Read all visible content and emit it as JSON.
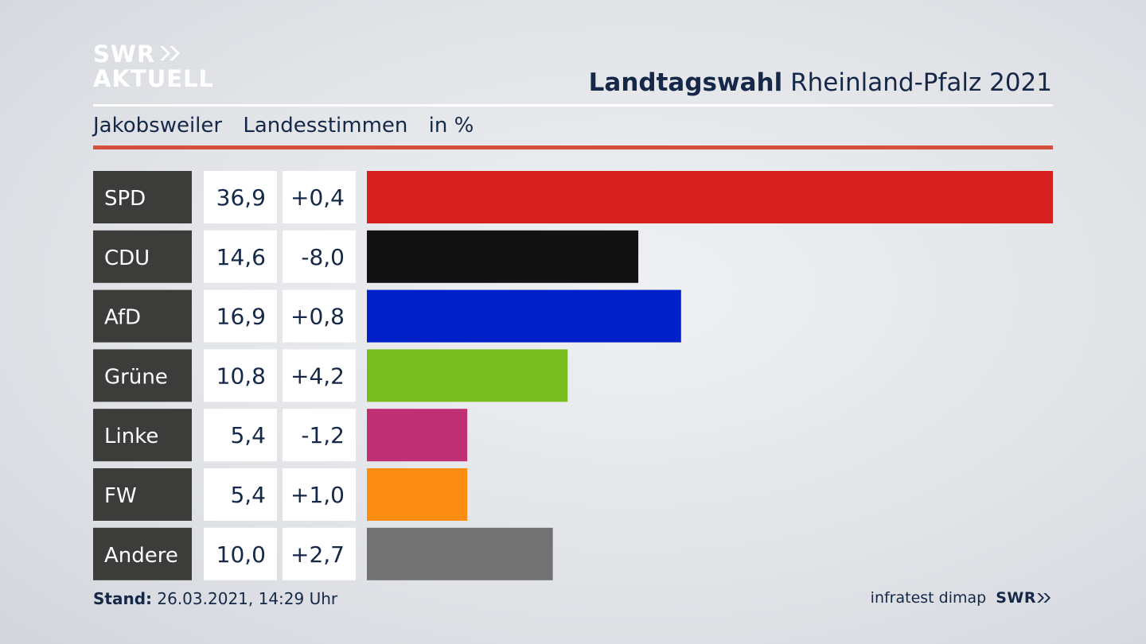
{
  "logo": {
    "line1": "SWR",
    "line2": "AKTUELL"
  },
  "header": {
    "title_bold": "Landtagswahl",
    "title_rest": "Rheinland-Pfalz 2021",
    "sub_place": "Jakobsweiler",
    "sub_type": "Landesstimmen",
    "sub_unit": "in %"
  },
  "footer": {
    "stand_label": "Stand:",
    "stand_value": "26.03.2021, 14:29 Uhr",
    "source": "infratest dimap",
    "source_brand": "SWR"
  },
  "chart_data": {
    "type": "bar",
    "orientation": "horizontal",
    "categories": [
      "SPD",
      "CDU",
      "AfD",
      "Grüne",
      "Linke",
      "FW",
      "Andere"
    ],
    "values": [
      36.9,
      14.6,
      16.9,
      10.8,
      5.4,
      5.4,
      10.0
    ],
    "value_labels": [
      "36,9",
      "14,6",
      "16,9",
      "10,8",
      "5,4",
      "5,4",
      "10,0"
    ],
    "change_labels": [
      "+0,4",
      "-8,0",
      "+0,8",
      "+4,2",
      "-1,2",
      "+1,0",
      "+2,7"
    ],
    "colors": [
      "#d62020",
      "#121212",
      "#0021c8",
      "#78be1e",
      "#bf2f73",
      "#fc8c12",
      "#727272"
    ],
    "xlim": [
      0,
      36.9
    ],
    "grid": false
  }
}
